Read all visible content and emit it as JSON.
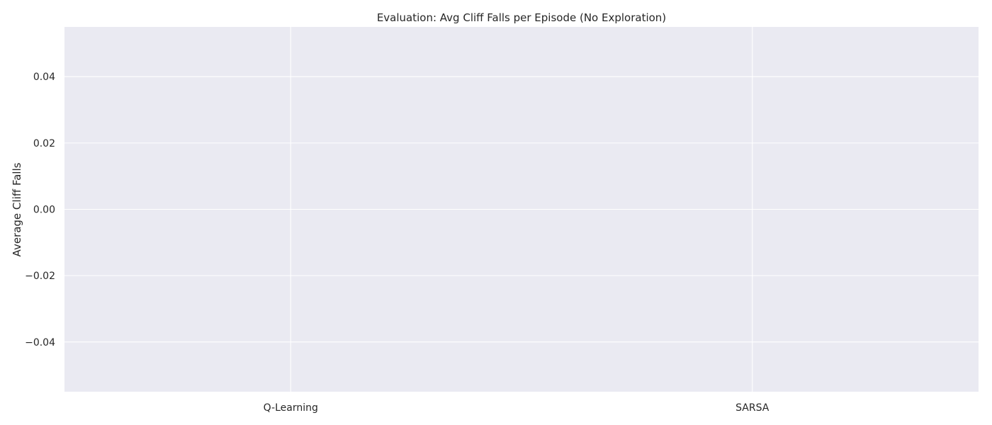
{
  "chart_data": {
    "type": "bar",
    "title": "Evaluation: Avg Cliff Falls per Episode (No Exploration)",
    "xlabel": "",
    "ylabel": "Average Cliff Falls",
    "categories": [
      "Q-Learning",
      "SARSA"
    ],
    "values": [
      0.0,
      0.0
    ],
    "ylim": [
      -0.055,
      0.055
    ],
    "yticks": [
      -0.04,
      -0.02,
      0.0,
      0.02,
      0.04
    ],
    "ytick_labels": [
      "−0.04",
      "−0.02",
      "0.00",
      "0.02",
      "0.04"
    ],
    "grid": true,
    "style": "seaborn-darkgrid",
    "colors": {
      "plot_background": "#eaeaf2",
      "grid": "#ffffff",
      "bar_edge": "#262626",
      "text": "#262626"
    }
  }
}
